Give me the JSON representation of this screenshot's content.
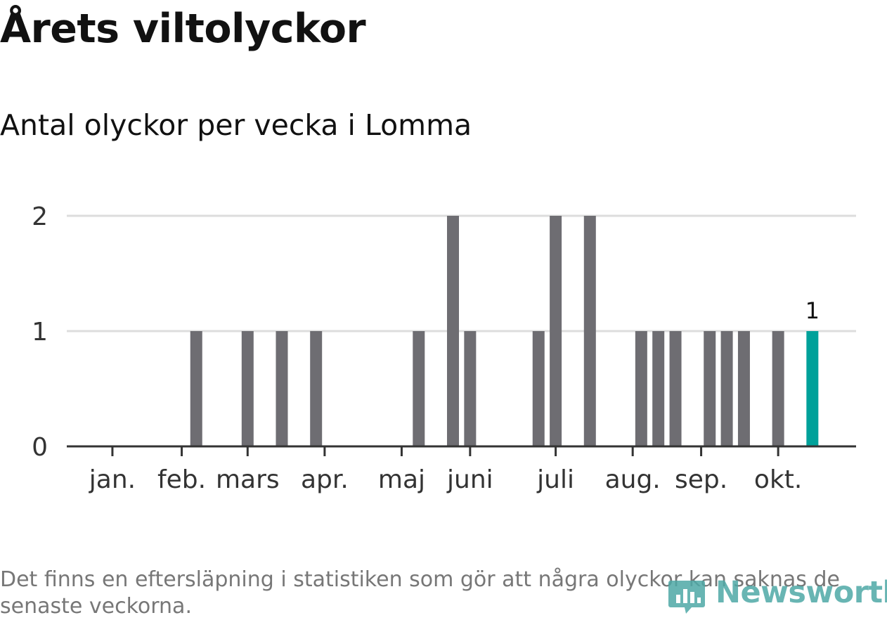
{
  "header": {
    "title": "Årets viltolyckor",
    "subtitle": "Antal olyckor per vecka i Lomma"
  },
  "footnote": "Det finns en eftersläpning i statistiken som gör att några olyckor kan saknas de senaste veckorna.",
  "branding": {
    "logo_text": "Newsworthy"
  },
  "colors": {
    "bar": "#6e6d72",
    "highlight": "#00a19a",
    "grid": "#dddddd",
    "axis": "#333333"
  },
  "chart_data": {
    "type": "bar",
    "title": "Antal olyckor per vecka i Lomma",
    "xlabel": "",
    "ylabel": "",
    "ylim": [
      0,
      2
    ],
    "yticks": [
      0,
      1,
      2
    ],
    "grid": true,
    "x_unit": "week",
    "weeks": [
      1,
      2,
      3,
      4,
      5,
      6,
      7,
      8,
      9,
      10,
      11,
      12,
      13,
      14,
      15,
      16,
      17,
      18,
      19,
      20,
      21,
      22,
      23,
      24,
      25,
      26,
      27,
      28,
      29,
      30,
      31,
      32,
      33,
      34,
      35,
      36,
      37,
      38,
      39,
      40,
      41,
      42
    ],
    "values": [
      0,
      0,
      0,
      0,
      0,
      1,
      0,
      0,
      1,
      0,
      1,
      0,
      1,
      0,
      0,
      0,
      0,
      0,
      1,
      0,
      2,
      1,
      0,
      0,
      0,
      1,
      2,
      0,
      2,
      0,
      0,
      1,
      1,
      1,
      0,
      1,
      1,
      1,
      0,
      1,
      0,
      1
    ],
    "highlight_week": 42,
    "highlight_label": "1",
    "month_ticks": [
      {
        "label": "jan.",
        "week": 1.1
      },
      {
        "label": "feb.",
        "week": 5.15
      },
      {
        "label": "mars",
        "week": 9.0
      },
      {
        "label": "apr.",
        "week": 13.5
      },
      {
        "label": "maj",
        "week": 18.0
      },
      {
        "label": "juni",
        "week": 22.0
      },
      {
        "label": "juli",
        "week": 27.0
      },
      {
        "label": "aug.",
        "week": 31.5
      },
      {
        "label": "sep.",
        "week": 35.5
      },
      {
        "label": "okt.",
        "week": 40.0
      }
    ]
  }
}
